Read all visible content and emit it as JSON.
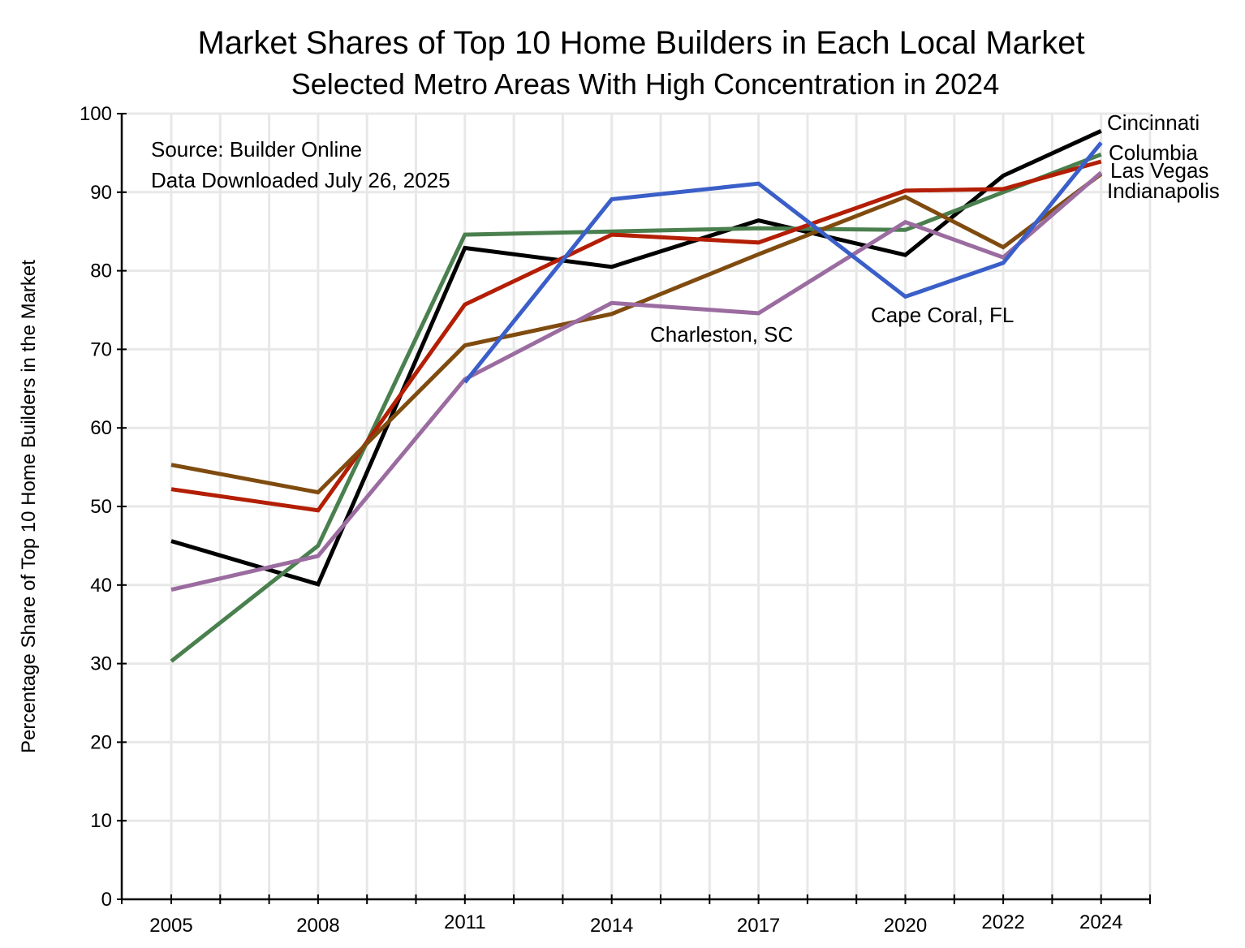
{
  "chart_data": {
    "type": "line",
    "title": "Market Shares of Top 10 Home Builders in Each Local Market",
    "subtitle": "Selected Metro Areas With High Concentration in 2024",
    "xlabel": "",
    "ylabel": "Percentage Share of Top 10 Home Builders in the Market",
    "ylim": [
      0,
      100
    ],
    "xlim": [
      2004,
      2025.5
    ],
    "grid": true,
    "y_ticks": [
      0,
      10,
      20,
      30,
      40,
      50,
      60,
      70,
      80,
      90,
      100
    ],
    "x_ticks": [
      2005,
      2008,
      2011,
      2014,
      2017,
      2020,
      2022,
      2024
    ],
    "x_tick_labels": [
      "2005",
      "2008",
      "2011",
      "2014",
      "2017",
      "2020",
      "2022",
      "2024"
    ],
    "annotations": [
      "Source:  Builder Online",
      "Data Downloaded July 26, 2025"
    ],
    "series": [
      {
        "name": "Cincinnati",
        "color": "#000000",
        "x": [
          2005,
          2008,
          2011,
          2014,
          2017,
          2020,
          2022,
          2024
        ],
        "values": [
          45.6,
          40.1,
          82.9,
          80.5,
          86.4,
          82.0,
          92.1,
          97.8
        ]
      },
      {
        "name": "Columbia",
        "color": "#4a7f4e",
        "x": [
          2005,
          2008,
          2011,
          2014,
          2017,
          2020,
          2022,
          2024
        ],
        "values": [
          30.3,
          45.0,
          84.6,
          85.0,
          85.4,
          85.2,
          90.0,
          94.8
        ]
      },
      {
        "name": "Las Vegas",
        "color": "#b31e04",
        "x": [
          2005,
          2008,
          2011,
          2014,
          2017,
          2020,
          2022,
          2024
        ],
        "values": [
          52.2,
          49.5,
          75.7,
          84.6,
          83.6,
          90.2,
          90.4,
          93.9
        ]
      },
      {
        "name": "Indianapolis",
        "color": "#7f4b0f",
        "x": [
          2005,
          2008,
          2011,
          2014,
          2017,
          2020,
          2022,
          2024
        ],
        "values": [
          55.3,
          51.8,
          70.5,
          74.5,
          82.1,
          89.4,
          83.0,
          92.3
        ]
      },
      {
        "name": "Charleston, SC",
        "color": "#9b6ca0",
        "x": [
          2005,
          2008,
          2011,
          2014,
          2017,
          2020,
          2022,
          2024
        ],
        "values": [
          39.4,
          43.7,
          66.2,
          75.9,
          74.6,
          86.2,
          81.7,
          92.5
        ]
      },
      {
        "name": "Cape Coral, FL",
        "color": "#3b5fc8",
        "x": [
          2011,
          2014,
          2017,
          2020,
          2022,
          2024
        ],
        "values": [
          65.8,
          89.1,
          91.1,
          76.7,
          81.0,
          96.3
        ]
      }
    ]
  }
}
